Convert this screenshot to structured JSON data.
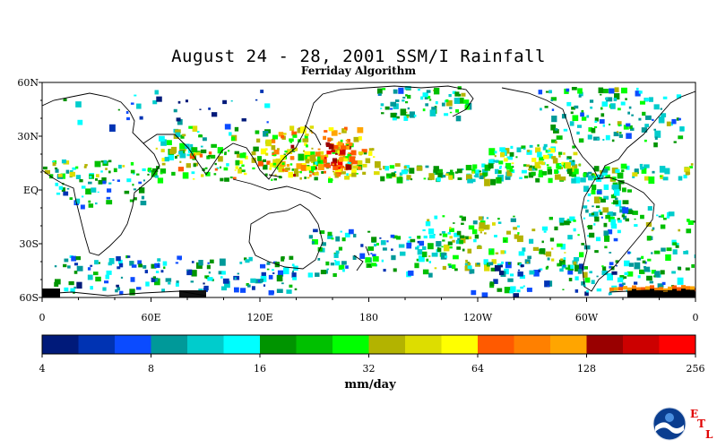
{
  "title": "August 24 - 28, 2001 SSM/I Rainfall",
  "subtitle": "Ferriday Algorithm",
  "lat_labels": [
    "60N",
    "30N",
    "EQ",
    "30S",
    "60S"
  ],
  "lon_labels": [
    "0",
    "60E",
    "120E",
    "180",
    "120W",
    "60W",
    "0"
  ],
  "colorbar": {
    "colors": [
      "#001a7a",
      "#0033b3",
      "#0b4bff",
      "#009999",
      "#00cccc",
      "#00ffff",
      "#009400",
      "#00c000",
      "#00ff00",
      "#b3b300",
      "#dddd00",
      "#ffff00",
      "#ff5a00",
      "#ff8000",
      "#ffa500",
      "#990000",
      "#cc0000",
      "#ff0000"
    ],
    "tick_labels": [
      "4",
      "8",
      "16",
      "32",
      "64",
      "128",
      "256"
    ],
    "units": "mm/day"
  },
  "logo": {
    "name": "NOAA",
    "etl": [
      "E",
      "T",
      "L"
    ]
  }
}
